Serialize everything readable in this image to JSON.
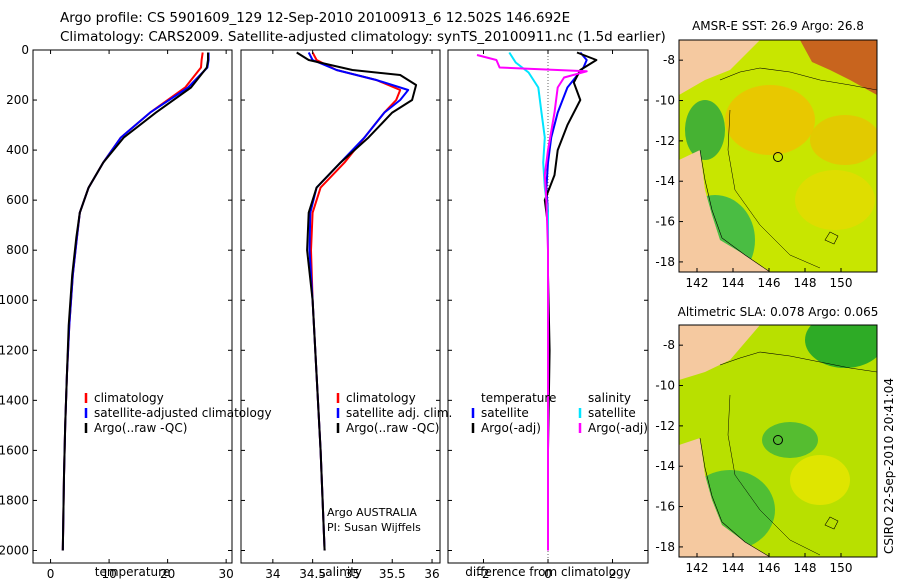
{
  "header": {
    "line1": "Argo profile: CS 5901609_129 12-Sep-2010 20100913_6 12.502S 146.692E",
    "line2": "Climatology: CARS2009. Satellite-adjusted climatology: synTS_20100911.nc (1.5d earlier)"
  },
  "credit": {
    "line1": "Argo AUSTRALIA",
    "line2": "PI: Susan Wijffels"
  },
  "side_stamp": "CSIRO 22-Sep-2010 20:41:04",
  "colors": {
    "climatology": "#ff0000",
    "satellite": "#0000ff",
    "argo": "#000000",
    "cyan": "#00e5ff",
    "magenta": "#ff00ff",
    "land": "#f5c9a0"
  },
  "depth_ticks": [
    "0",
    "200",
    "400",
    "600",
    "800",
    "1000",
    "1200",
    "1400",
    "1600",
    "1800",
    "2000"
  ],
  "chart_data": [
    {
      "type": "line",
      "xlabel": "temperature",
      "ylabel": "",
      "xlim": [
        -3,
        31
      ],
      "ylim": [
        2050,
        0
      ],
      "x_ticks": [
        "0",
        "10",
        "20",
        "30"
      ],
      "y_ticks": [
        "0",
        "200",
        "400",
        "600",
        "800",
        "1000",
        "1200",
        "1400",
        "1600",
        "1800",
        "2000"
      ],
      "legend": [
        "climatology",
        "satellite-adjusted climatology",
        "Argo(..raw -QC)"
      ],
      "series": [
        {
          "name": "climatology",
          "color": "#ff0000",
          "points": [
            [
              26,
              10
            ],
            [
              25.8,
              40
            ],
            [
              25.7,
              70
            ],
            [
              23,
              150
            ],
            [
              17,
              250
            ],
            [
              12,
              350
            ],
            [
              9,
              450
            ],
            [
              6.5,
              550
            ],
            [
              5,
              650
            ],
            [
              4.5,
              750
            ],
            [
              3.8,
              900
            ],
            [
              3.2,
              1100
            ],
            [
              2.8,
              1300
            ],
            [
              2.5,
              1500
            ],
            [
              2.3,
              1700
            ],
            [
              2.1,
              2000
            ]
          ]
        },
        {
          "name": "satellite-adjusted climatology",
          "color": "#0000ff",
          "points": [
            [
              27,
              10
            ],
            [
              27,
              40
            ],
            [
              26.8,
              70
            ],
            [
              23.5,
              150
            ],
            [
              17,
              250
            ],
            [
              12,
              350
            ],
            [
              9,
              450
            ],
            [
              6.5,
              550
            ],
            [
              5,
              650
            ],
            [
              4.5,
              750
            ],
            [
              3.8,
              900
            ],
            [
              3.2,
              1100
            ],
            [
              2.8,
              1300
            ],
            [
              2.5,
              1500
            ],
            [
              2.3,
              1700
            ],
            [
              2.1,
              2000
            ]
          ]
        },
        {
          "name": "Argo(..raw -QC)",
          "color": "#000000",
          "points": [
            [
              26.9,
              10
            ],
            [
              26.9,
              40
            ],
            [
              26.7,
              70
            ],
            [
              24,
              150
            ],
            [
              18,
              250
            ],
            [
              12.5,
              350
            ],
            [
              9,
              450
            ],
            [
              6.5,
              550
            ],
            [
              5,
              650
            ],
            [
              4.4,
              750
            ],
            [
              3.7,
              900
            ],
            [
              3.1,
              1100
            ],
            [
              2.8,
              1300
            ],
            [
              2.5,
              1500
            ],
            [
              2.3,
              1700
            ],
            [
              2.1,
              2000
            ]
          ]
        }
      ]
    },
    {
      "type": "line",
      "xlabel": "salinity",
      "ylabel": "",
      "xlim": [
        33.6,
        36.1
      ],
      "ylim": [
        2050,
        0
      ],
      "x_ticks": [
        "34",
        "34.5",
        "35",
        "35.5",
        "36"
      ],
      "y_ticks": [],
      "legend": [
        "climatology",
        "satellite adj. clim.",
        "Argo(..raw -QC)"
      ],
      "series": [
        {
          "name": "climatology",
          "color": "#ff0000",
          "points": [
            [
              34.5,
              10
            ],
            [
              34.55,
              40
            ],
            [
              34.8,
              80
            ],
            [
              35.3,
              120
            ],
            [
              35.6,
              160
            ],
            [
              35.55,
              200
            ],
            [
              35.4,
              250
            ],
            [
              35.15,
              350
            ],
            [
              34.9,
              450
            ],
            [
              34.6,
              550
            ],
            [
              34.5,
              650
            ],
            [
              34.48,
              800
            ],
            [
              34.5,
              1000
            ],
            [
              34.55,
              1300
            ],
            [
              34.6,
              1600
            ],
            [
              34.65,
              2000
            ]
          ]
        },
        {
          "name": "satellite adj. clim.",
          "color": "#0000ff",
          "points": [
            [
              34.45,
              10
            ],
            [
              34.5,
              40
            ],
            [
              34.8,
              80
            ],
            [
              35.3,
              120
            ],
            [
              35.7,
              160
            ],
            [
              35.6,
              200
            ],
            [
              35.4,
              250
            ],
            [
              35.15,
              350
            ],
            [
              34.85,
              450
            ],
            [
              34.55,
              550
            ],
            [
              34.47,
              650
            ],
            [
              34.46,
              800
            ],
            [
              34.5,
              1000
            ],
            [
              34.55,
              1300
            ],
            [
              34.6,
              1600
            ],
            [
              34.65,
              2000
            ]
          ]
        },
        {
          "name": "Argo(..raw -QC)",
          "color": "#000000",
          "points": [
            [
              34.3,
              10
            ],
            [
              34.45,
              40
            ],
            [
              35,
              80
            ],
            [
              35.6,
              100
            ],
            [
              35.8,
              140
            ],
            [
              35.75,
              200
            ],
            [
              35.5,
              250
            ],
            [
              35.2,
              350
            ],
            [
              34.85,
              450
            ],
            [
              34.55,
              550
            ],
            [
              34.45,
              650
            ],
            [
              34.43,
              800
            ],
            [
              34.5,
              1000
            ],
            [
              34.55,
              1300
            ],
            [
              34.6,
              1600
            ],
            [
              34.65,
              2000
            ]
          ]
        }
      ]
    },
    {
      "type": "line",
      "xlabel": "difference from climatology",
      "ylabel": "",
      "xlim": [
        -3.1,
        3.1
      ],
      "ylim": [
        2050,
        0
      ],
      "x_ticks": [
        "-2",
        "0",
        "2"
      ],
      "y_ticks": [],
      "legend_groups": [
        {
          "title": "temperature",
          "items": [
            "satellite",
            "Argo(-adj)"
          ]
        },
        {
          "title": "salinity",
          "items": [
            "satellite",
            "Argo(-adj)"
          ]
        }
      ],
      "series": [
        {
          "name": "temperature satellite",
          "color": "#0000ff",
          "points": [
            [
              1,
              10
            ],
            [
              1.2,
              40
            ],
            [
              1.1,
              70
            ],
            [
              0.6,
              150
            ],
            [
              0.3,
              250
            ],
            [
              0.1,
              350
            ],
            [
              0,
              450
            ],
            [
              -0.05,
              550
            ],
            [
              0,
              650
            ],
            [
              0,
              900
            ],
            [
              0,
              1500
            ],
            [
              0,
              2000
            ]
          ]
        },
        {
          "name": "temperature Argo(-adj)",
          "color": "#000000",
          "points": [
            [
              0.9,
              10
            ],
            [
              1.5,
              40
            ],
            [
              1.0,
              80
            ],
            [
              0.8,
              130
            ],
            [
              1.0,
              200
            ],
            [
              0.6,
              300
            ],
            [
              0.3,
              400
            ],
            [
              0.2,
              500
            ],
            [
              -0.1,
              600
            ],
            [
              0,
              700
            ],
            [
              0,
              900
            ],
            [
              0.05,
              1200
            ],
            [
              0,
              1600
            ],
            [
              0,
              2000
            ]
          ]
        },
        {
          "name": "salinity satellite",
          "color": "#00e5ff",
          "points": [
            [
              -1.2,
              10
            ],
            [
              -1.0,
              50
            ],
            [
              -0.6,
              90
            ],
            [
              -0.3,
              150
            ],
            [
              -0.2,
              250
            ],
            [
              -0.1,
              350
            ],
            [
              -0.15,
              450
            ],
            [
              -0.1,
              550
            ],
            [
              0,
              650
            ],
            [
              0,
              900
            ],
            [
              0,
              2000
            ]
          ]
        },
        {
          "name": "salinity Argo(-adj)",
          "color": "#ff00ff",
          "points": [
            [
              -2.2,
              20
            ],
            [
              -1.6,
              40
            ],
            [
              -1.5,
              70
            ],
            [
              1.2,
              85
            ],
            [
              0.5,
              110
            ],
            [
              0.3,
              150
            ],
            [
              0.2,
              250
            ],
            [
              0,
              400
            ],
            [
              -0.1,
              500
            ],
            [
              -0.05,
              600
            ],
            [
              0,
              800
            ],
            [
              0,
              2000
            ]
          ]
        }
      ]
    },
    {
      "type": "heatmap",
      "title": "AMSR-E SST: 26.9 Argo: 26.8",
      "xlim": [
        141,
        152
      ],
      "ylim": [
        -18.5,
        -7
      ],
      "x_ticks": [
        "142",
        "144",
        "146",
        "148",
        "150"
      ],
      "y_ticks": [
        "-8",
        "-10",
        "-12",
        "-14",
        "-16",
        "-18"
      ],
      "argo_position": {
        "lon": 146.692,
        "lat": -12.502
      }
    },
    {
      "type": "heatmap",
      "title": "Altimetric SLA: 0.078 Argo: 0.065",
      "xlim": [
        141,
        152
      ],
      "ylim": [
        -18.5,
        -7
      ],
      "x_ticks": [
        "142",
        "144",
        "146",
        "148",
        "150"
      ],
      "y_ticks": [
        "-8",
        "-10",
        "-12",
        "-14",
        "-16",
        "-18"
      ],
      "argo_position": {
        "lon": 146.692,
        "lat": -12.502
      }
    }
  ]
}
